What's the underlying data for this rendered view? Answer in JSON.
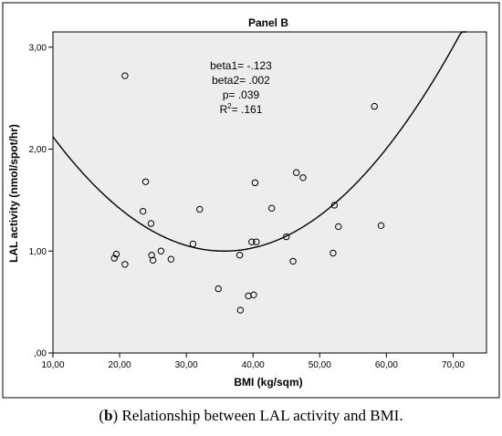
{
  "chart_data": {
    "type": "scatter",
    "title": "Panel B",
    "xlabel": "BMI (kg/sqm)",
    "ylabel": "LAL activity (nmol/spot/hr)",
    "xlim": [
      10,
      75
    ],
    "ylim": [
      0,
      3.15
    ],
    "x_ticks": [
      10,
      20,
      30,
      40,
      50,
      60,
      70
    ],
    "x_tick_labels": [
      "10,00",
      "20,00",
      "30,00",
      "40,00",
      "50,00",
      "60,00",
      "70,00"
    ],
    "y_ticks": [
      0,
      1,
      2,
      3
    ],
    "y_tick_labels": [
      ",00",
      "1,00",
      "2,00",
      "3,00"
    ],
    "grid": false,
    "background": "#ededed",
    "annotation": {
      "beta1_label": "beta1= -.123",
      "beta2_label": "beta2= .002",
      "p_label": "p= .039",
      "r2_prefix": "R",
      "r2_sup": "2",
      "r2_suffix": "= .161"
    },
    "fit": {
      "kind": "quadratic",
      "points": [
        [
          10.0,
          2.16
        ],
        [
          20.0,
          1.38
        ],
        [
          30.0,
          1.04
        ],
        [
          36.8,
          0.99
        ],
        [
          40.0,
          1.02
        ],
        [
          50.0,
          1.34
        ],
        [
          60.0,
          2.1
        ],
        [
          70.0,
          3.05
        ],
        [
          72.0,
          3.15
        ]
      ]
    },
    "points": [
      [
        19.2,
        0.93
      ],
      [
        19.5,
        0.97
      ],
      [
        20.8,
        0.87
      ],
      [
        20.8,
        2.72
      ],
      [
        23.5,
        1.39
      ],
      [
        23.9,
        1.68
      ],
      [
        24.7,
        1.27
      ],
      [
        24.8,
        0.96
      ],
      [
        25.0,
        0.91
      ],
      [
        26.2,
        1.0
      ],
      [
        27.7,
        0.92
      ],
      [
        31.0,
        1.07
      ],
      [
        32.0,
        1.41
      ],
      [
        34.8,
        0.63
      ],
      [
        38.0,
        0.96
      ],
      [
        38.1,
        0.42
      ],
      [
        39.3,
        0.56
      ],
      [
        39.8,
        1.09
      ],
      [
        40.1,
        0.57
      ],
      [
        40.3,
        1.67
      ],
      [
        40.5,
        1.09
      ],
      [
        42.8,
        1.42
      ],
      [
        45.0,
        1.14
      ],
      [
        46.0,
        0.9
      ],
      [
        46.5,
        1.77
      ],
      [
        47.5,
        1.72
      ],
      [
        52.0,
        0.98
      ],
      [
        52.2,
        1.45
      ],
      [
        52.8,
        1.24
      ],
      [
        58.2,
        2.42
      ],
      [
        59.2,
        1.25
      ]
    ]
  },
  "caption": {
    "open": "(",
    "letter": "b",
    "rest": ") Relationship between LAL activity and BMI."
  }
}
